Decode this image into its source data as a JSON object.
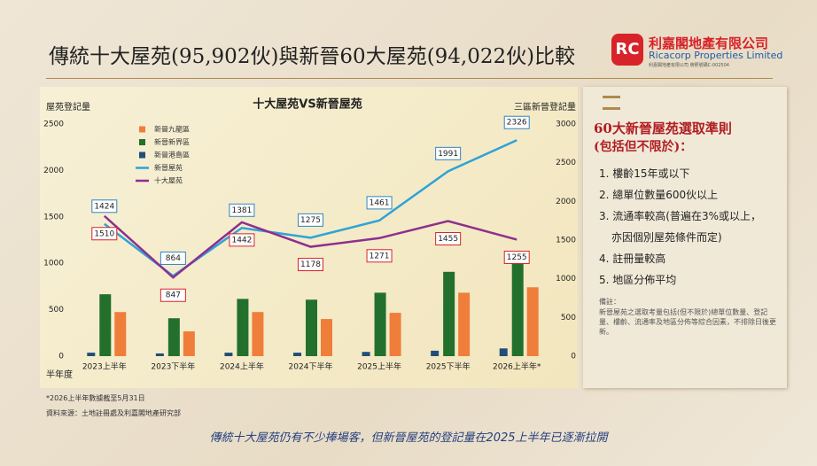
{
  "header": {
    "title": "傳統十大屋苑(95,902伙)與新晉60大屋苑(94,022伙)比較",
    "company_zh": "利嘉閣地產有限公司",
    "company_en": "Ricacorp Properties Limited",
    "license": "利嘉閣地產有限公司 牌照號碼C-002504"
  },
  "chart_data": {
    "type": "bar",
    "title": "十大屋苑VS新晉屋苑",
    "ylabel": "屋苑登記量",
    "y2label": "三區新晉登記量",
    "xlabel": "半年度",
    "categories": [
      "2023上半年",
      "2023下半年",
      "2024上半年",
      "2024下半年",
      "2025上半年",
      "2025下半年",
      "2026上半年*"
    ],
    "ylim": [
      0,
      2500
    ],
    "yticks": [
      0,
      500,
      1000,
      1500,
      2000,
      2500
    ],
    "y2lim": [
      0,
      3000
    ],
    "y2ticks": [
      0,
      500,
      1000,
      1500,
      2000,
      2500,
      3000
    ],
    "series": [
      {
        "name": "新晉九龍區",
        "type": "bar",
        "axis": "y2",
        "color": "#ef7e3a",
        "values": [
          570,
          320,
          570,
          480,
          560,
          820,
          890
        ]
      },
      {
        "name": "新晉新界區",
        "type": "bar",
        "axis": "y2",
        "color": "#22702c",
        "values": [
          800,
          490,
          740,
          730,
          820,
          1090,
          1300
        ]
      },
      {
        "name": "新晉港島區",
        "type": "bar",
        "axis": "y2",
        "color": "#1f4e79",
        "values": [
          45,
          35,
          45,
          45,
          55,
          70,
          100
        ]
      },
      {
        "name": "新晉屋苑",
        "type": "line",
        "color": "#2ea3d6",
        "values": [
          1424,
          864,
          1381,
          1275,
          1461,
          1991,
          2326
        ]
      },
      {
        "name": "十大屋苑",
        "type": "line",
        "color": "#8e2f8d",
        "values": [
          1510,
          847,
          1442,
          1178,
          1271,
          1455,
          1255
        ]
      }
    ]
  },
  "side_panel": {
    "title": "60大新晉屋苑選取準則",
    "subtitle": "(包括但不限於)：",
    "items": [
      "1. 樓齡15年或以下",
      "2. 總單位數量600伙以上",
      "3. 流通率較高(普遍在3%或以上，",
      "亦因個別屋苑條件而定)",
      "4. 註冊量較高",
      "5. 地區分佈平均"
    ],
    "note_title": "備註：",
    "note": "新晉屋苑之選取考量包括(但不限於)總單位數量、登記量、樓齡、流通率及地區分佈等綜合因素，不排除日後更新。"
  },
  "footer": {
    "footnote": "*2026上半年數據截至5月31日",
    "source": "資料來源：土地註冊處及利嘉閣地產研究部",
    "caption": "傳統十大屋苑仍有不少捧場客，但新晉屋苑的登記量在2025上半年已逐漸拉開"
  }
}
